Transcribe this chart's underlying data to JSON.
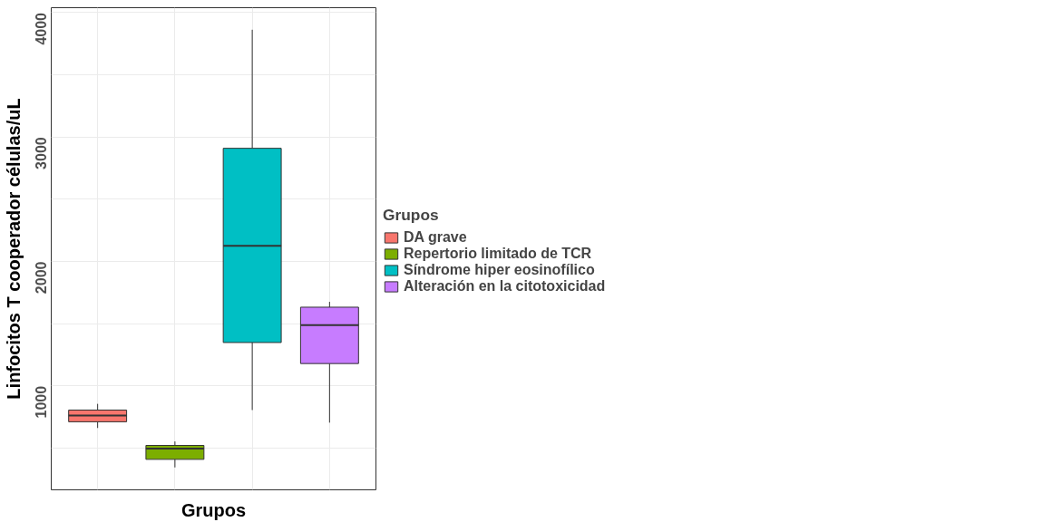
{
  "chart_data": {
    "type": "box",
    "xlabel": "Grupos",
    "ylabel": "Linfocitos T cooperador células/uL",
    "legend_title": "Grupos",
    "categories": [
      null,
      null,
      null,
      null
    ],
    "series": [
      {
        "name": "DA grave",
        "color": "#f8766d",
        "boxes": [
          {
            "low": 662,
            "q1": 712,
            "median": 763,
            "q3": 806,
            "high": 856
          },
          null,
          null,
          null
        ]
      },
      {
        "name": "Repertorio limitado de TCR",
        "color": "#7cae00",
        "boxes": [
          null,
          {
            "low": 345,
            "q1": 410,
            "median": 496,
            "q3": 522,
            "high": 554
          },
          null,
          null
        ]
      },
      {
        "name": "Síndrome hiper eosinofílico",
        "color": "#00bfc4",
        "boxes": [
          null,
          null,
          {
            "low": 806,
            "q1": 1349,
            "median": 2126,
            "q3": 2910,
            "high": 3863
          },
          null
        ]
      },
      {
        "name": "Alteración en la citotoxicidad",
        "color": "#c77cff",
        "boxes": [
          null,
          null,
          null,
          {
            "low": 705,
            "q1": 1180,
            "median": 1489,
            "q3": 1633,
            "high": 1676
          }
        ]
      }
    ],
    "ylim": [
      165,
      4040
    ],
    "yticks": [
      {
        "value": 500,
        "label": null
      },
      1000,
      {
        "value": 1500,
        "label": null
      },
      2000,
      {
        "value": 2500,
        "label": null
      },
      3000,
      {
        "value": 3500,
        "label": null
      },
      4000
    ],
    "grid": true,
    "legend": "right"
  }
}
